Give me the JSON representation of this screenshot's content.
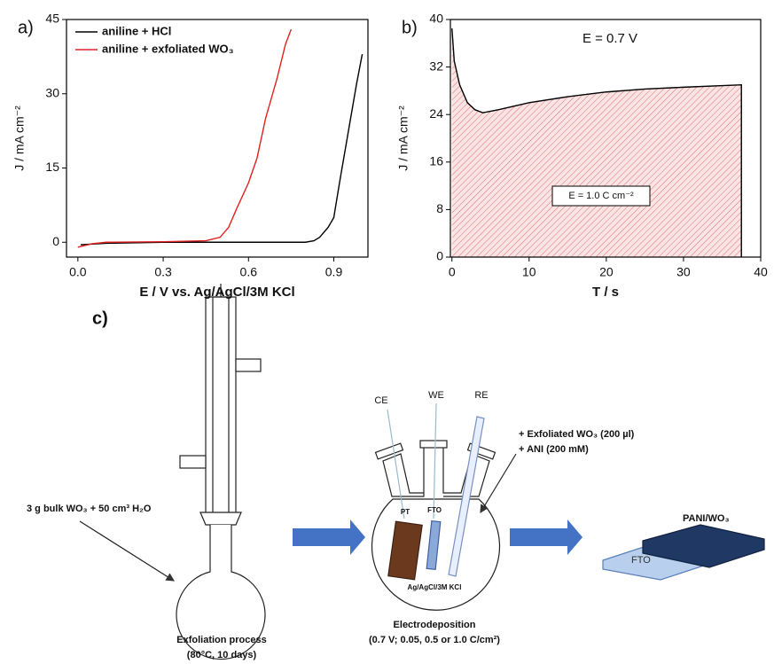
{
  "chart_data": [
    {
      "type": "line",
      "panel": "a)",
      "xlabel": "E / V vs. Ag/AgCl/3M KCl",
      "ylabel": "J / mA cm⁻²",
      "xlim": [
        -0.04,
        1.02
      ],
      "ylim": [
        -3,
        45
      ],
      "xticks": [
        {
          "value": 0,
          "label": "0.0"
        },
        0.3,
        0.6,
        0.9
      ],
      "yticks": [
        0,
        15,
        30,
        45
      ],
      "legend": "upper left",
      "series": [
        {
          "name": "aniline + HCl",
          "color": "#000000",
          "x": [
            0.01,
            0.1,
            0.3,
            0.5,
            0.7,
            0.8,
            0.83,
            0.85,
            0.88,
            0.9,
            0.92,
            0.95,
            0.98,
            1.0
          ],
          "values": [
            -0.5,
            -0.2,
            0,
            0,
            0,
            0,
            0.3,
            1,
            3,
            5,
            12,
            22,
            32,
            38
          ]
        },
        {
          "name": "aniline + exfoliated WO₃",
          "color": "#e02020",
          "x": [
            0.0,
            0.05,
            0.1,
            0.3,
            0.45,
            0.5,
            0.53,
            0.56,
            0.6,
            0.63,
            0.66,
            0.7,
            0.73,
            0.75
          ],
          "values": [
            -1,
            -0.3,
            0,
            0.1,
            0.3,
            1,
            3,
            7,
            12,
            17,
            25,
            33,
            40,
            43
          ]
        }
      ]
    },
    {
      "type": "area",
      "panel": "b)",
      "xlabel": "T / s",
      "ylabel": "J / mA cm⁻²",
      "xlim": [
        -0.2,
        40
      ],
      "ylim": [
        0,
        40
      ],
      "xticks": [
        0,
        10,
        20,
        30,
        40
      ],
      "yticks": [
        0,
        8,
        16,
        24,
        32,
        40
      ],
      "annotations": [
        "E = 0.7 V",
        "E = 1.0 C cm⁻²"
      ],
      "series": [
        {
          "color": "#e02020",
          "x": [
            0,
            0.3,
            1,
            2,
            3,
            4,
            6,
            10,
            15,
            20,
            25,
            30,
            37.5,
            37.5
          ],
          "values": [
            38.5,
            33,
            29,
            26,
            24.8,
            24.3,
            24.8,
            26,
            27,
            27.8,
            28.3,
            28.6,
            29,
            0
          ]
        }
      ]
    }
  ],
  "diagram": {
    "panel": "c)",
    "reactant": "3 g bulk WO₃ + 50 cm³ H₂O",
    "step1": [
      "Exfoliation process",
      "(80°C, 10 days)"
    ],
    "electrodes": [
      "CE",
      "WE",
      "RE"
    ],
    "inside": [
      "PT",
      "FTO",
      "Ag/AgCl/3M KCl"
    ],
    "additives": [
      "+ Exfoliated WO₃ (200 µl)",
      "+ ANI (200 mM)"
    ],
    "step2": [
      "Electrodeposition",
      "(0.7 V; 0.05, 0.5 or 1.0 C/cm²)"
    ],
    "product": [
      "PANI/WO₃",
      "FTO"
    ]
  }
}
